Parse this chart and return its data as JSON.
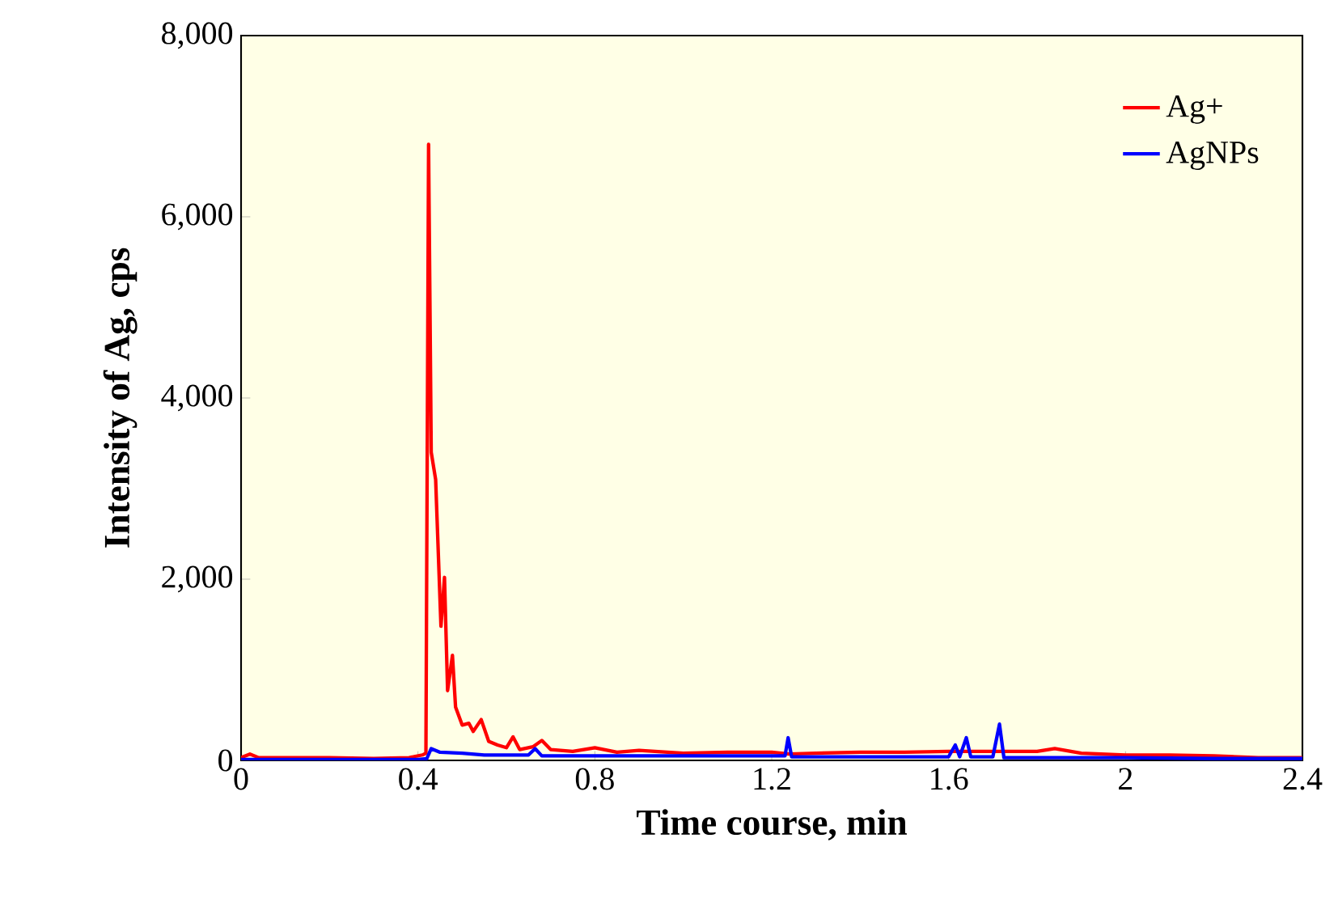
{
  "chart_data": {
    "type": "line",
    "xlabel": "Time course, min",
    "ylabel": "Intensity of Ag, cps",
    "xlim": [
      0,
      2.4
    ],
    "ylim": [
      0,
      8000
    ],
    "xticks": [
      0,
      0.4,
      0.8,
      1.2,
      1.6,
      2,
      2.4
    ],
    "yticks": [
      {
        "value": 0,
        "label": "0"
      },
      {
        "value": 2000,
        "label": "2,000"
      },
      {
        "value": 4000,
        "label": "4,000"
      },
      {
        "value": 6000,
        "label": "6,000"
      },
      {
        "value": 8000,
        "label": "8,000"
      }
    ],
    "legend": "top right",
    "grid": false,
    "marker": "none",
    "line_style": "solid",
    "series": [
      {
        "name": "Ag+",
        "color": "#ff0000",
        "x": [
          0,
          0.02,
          0.04,
          0.1,
          0.2,
          0.3,
          0.38,
          0.41,
          0.418,
          0.424,
          0.43,
          0.44,
          0.452,
          0.46,
          0.467,
          0.478,
          0.485,
          0.5,
          0.515,
          0.525,
          0.543,
          0.56,
          0.58,
          0.6,
          0.615,
          0.63,
          0.66,
          0.68,
          0.7,
          0.75,
          0.8,
          0.85,
          0.9,
          1.0,
          1.1,
          1.2,
          1.24,
          1.3,
          1.4,
          1.5,
          1.6,
          1.7,
          1.75,
          1.8,
          1.84,
          1.9,
          2.0,
          2.1,
          2.2,
          2.3,
          2.4
        ],
        "values": [
          30,
          70,
          30,
          30,
          30,
          20,
          30,
          60,
          80,
          6800,
          3400,
          3100,
          1480,
          2020,
          770,
          1160,
          590,
          390,
          410,
          320,
          450,
          210,
          170,
          140,
          260,
          120,
          150,
          220,
          120,
          100,
          140,
          90,
          110,
          80,
          90,
          90,
          70,
          80,
          90,
          90,
          100,
          100,
          100,
          100,
          130,
          80,
          60,
          60,
          50,
          30,
          30
        ]
      },
      {
        "name": "AgNPs",
        "color": "#0000ff",
        "x": [
          0,
          0.2,
          0.4,
          0.42,
          0.43,
          0.45,
          0.5,
          0.55,
          0.6,
          0.65,
          0.665,
          0.68,
          0.8,
          1.0,
          1.2,
          1.23,
          1.237,
          1.245,
          1.4,
          1.6,
          1.615,
          1.625,
          1.64,
          1.65,
          1.7,
          1.715,
          1.725,
          1.8,
          2.0,
          2.2,
          2.4
        ],
        "values": [
          10,
          10,
          10,
          20,
          130,
          90,
          80,
          60,
          60,
          60,
          130,
          50,
          50,
          50,
          50,
          50,
          250,
          40,
          40,
          40,
          170,
          40,
          250,
          40,
          40,
          400,
          30,
          30,
          30,
          20,
          20
        ]
      }
    ]
  }
}
